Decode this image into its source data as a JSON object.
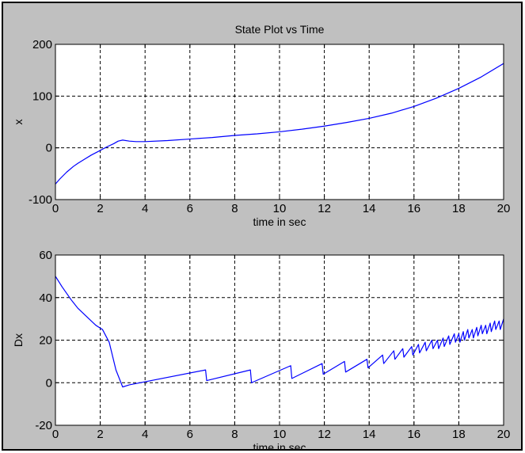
{
  "colors": {
    "figure_background": "#c0c0c0",
    "axes_background": "#ffffff",
    "line": "#0000ff",
    "grid": "#000000"
  },
  "chart_data": [
    {
      "type": "line",
      "title": "State Plot vs Time",
      "xlabel": "time in sec",
      "ylabel": "x",
      "xlim": [
        0,
        20
      ],
      "ylim": [
        -100,
        200
      ],
      "xticks": [
        0,
        2,
        4,
        6,
        8,
        10,
        12,
        14,
        16,
        18,
        20
      ],
      "yticks": [
        -100,
        0,
        100,
        200
      ],
      "grid": true,
      "grid_style": "dashed",
      "series": [
        {
          "x": [
            0,
            0.2,
            0.5,
            0.8,
            1.0,
            1.3,
            1.6,
            2.0,
            2.3,
            2.6,
            2.8,
            3.0,
            3.3,
            3.6,
            4.0,
            5.0,
            6.0,
            7.0,
            8.0,
            9.0,
            10.0,
            11.0,
            12.0,
            13.0,
            14.0,
            15.0,
            16.0,
            17.0,
            18.0,
            19.0,
            20.0
          ],
          "y": [
            -70,
            -60,
            -47,
            -36,
            -30,
            -22,
            -14,
            -5,
            2,
            8,
            13,
            15,
            13,
            12,
            12,
            14,
            17,
            20,
            24,
            27,
            31,
            36,
            42,
            49,
            57,
            67,
            80,
            96,
            115,
            137,
            163
          ]
        }
      ]
    },
    {
      "type": "line",
      "title": "",
      "xlabel": "time in sec",
      "ylabel": "Dx",
      "xlim": [
        0,
        20
      ],
      "ylim": [
        -20,
        60
      ],
      "xticks": [
        0,
        2,
        4,
        6,
        8,
        10,
        12,
        14,
        16,
        18,
        20
      ],
      "yticks": [
        -20,
        0,
        20,
        40,
        60
      ],
      "grid": true,
      "grid_style": "dashed",
      "series": [
        {
          "x": [
            0,
            0.3,
            0.7,
            1.0,
            1.4,
            1.8,
            2.1,
            2.4,
            2.7,
            3.0,
            3.3,
            6.7,
            6.75,
            8.7,
            8.75,
            10.5,
            10.55,
            11.9,
            11.95,
            12.9,
            12.95,
            13.9,
            13.95,
            14.6,
            14.65,
            15.1,
            15.15,
            15.5,
            15.55,
            15.9,
            15.95,
            16.2,
            16.25,
            16.5,
            16.55,
            16.8,
            16.85,
            17.05,
            17.1,
            17.3,
            17.35,
            17.55,
            17.6,
            17.8,
            17.85,
            18.0,
            18.05,
            18.2,
            18.25,
            18.4,
            18.45,
            18.6,
            18.65,
            18.8,
            18.85,
            19.0,
            19.05,
            19.2,
            19.25,
            19.4,
            19.45,
            19.6,
            19.65,
            19.8,
            19.85,
            20.0
          ],
          "y": [
            50,
            45,
            39,
            35,
            31,
            27,
            25,
            19,
            6,
            -2,
            -1,
            6,
            1,
            6,
            0,
            8,
            2,
            9,
            4,
            10,
            5,
            11,
            7,
            13,
            9,
            15,
            11,
            16,
            12,
            17,
            13,
            18,
            14,
            19,
            15,
            20,
            16,
            20,
            16,
            21,
            17,
            22,
            18,
            23,
            19,
            23,
            19,
            24,
            20,
            25,
            21,
            25,
            21,
            26,
            22,
            27,
            23,
            27,
            23,
            28,
            24,
            29,
            25,
            29,
            25,
            30
          ]
        }
      ]
    }
  ]
}
